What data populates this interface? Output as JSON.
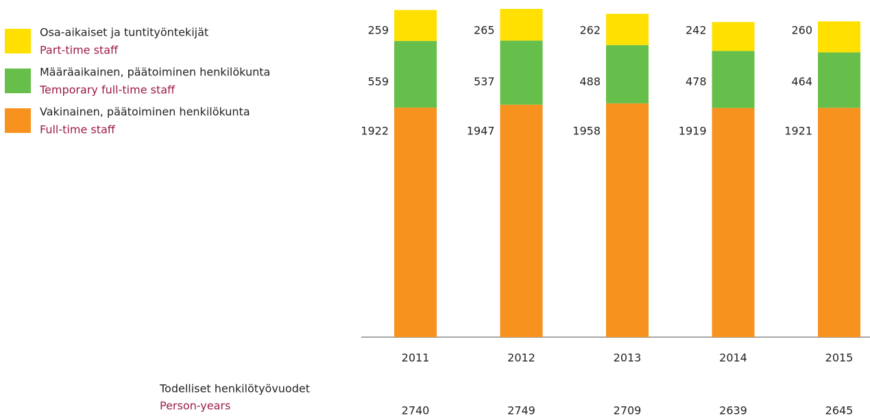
{
  "chart_data": {
    "type": "stacked_bar",
    "categories": [
      "2011",
      "2012",
      "2013",
      "2014",
      "2015"
    ],
    "series": [
      {
        "name": "Vakinainen, päätoiminen henkilökunta",
        "name_en": "Full-time staff",
        "color": "#f7921e",
        "values": [
          1922,
          1947,
          1958,
          1919,
          1921
        ]
      },
      {
        "name": "Määräaikainen, päätoiminen henkilökunta",
        "name_en": "Temporary full-time staff",
        "color": "#66bf4a",
        "values": [
          559,
          537,
          488,
          478,
          464
        ]
      },
      {
        "name": "Osa-aikaiset ja tuntityöntekijät",
        "name_en": "Part-time staff",
        "color": "#ffe000",
        "values": [
          259,
          265,
          262,
          242,
          260
        ]
      }
    ],
    "totals_label": "Todelliset henkilötyövuodet",
    "totals_label_en": "Person-years",
    "totals": [
      2740,
      2749,
      2709,
      2639,
      2645
    ]
  }
}
